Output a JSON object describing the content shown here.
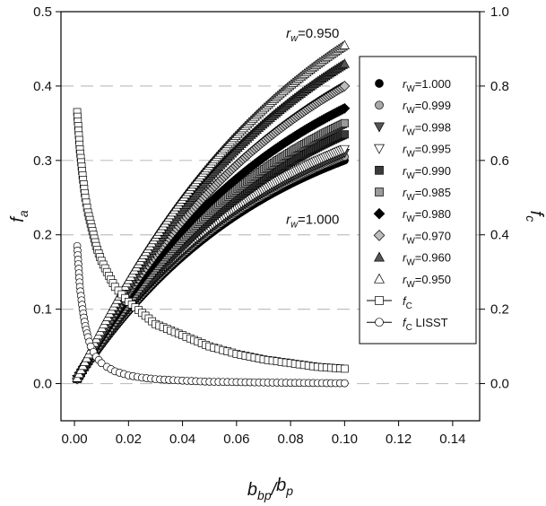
{
  "chart_data": {
    "type": "scatter",
    "title": "",
    "xlabel": "b_bp/b_p",
    "ylabel_left": "f_a",
    "ylabel_right": "f_c",
    "xlim": [
      -0.005,
      0.15
    ],
    "ylim_left": [
      -0.05,
      0.5
    ],
    "ylim_right": [
      -0.1,
      1.0
    ],
    "x_ticks": [
      "0.00",
      "0.02",
      "0.04",
      "0.06",
      "0.08",
      "0.10",
      "0.12",
      "0.14"
    ],
    "y_ticks_left": [
      "0.0",
      "0.1",
      "0.2",
      "0.3",
      "0.4",
      "0.5"
    ],
    "y_ticks_right": [
      "0.0",
      "0.2",
      "0.4",
      "0.6",
      "0.8",
      "1.0"
    ],
    "gridlines": "dashed horizontal at 0.0-0.4 (left axis)",
    "legend_position": "right",
    "annotations": [
      {
        "text": "r_w=0.950",
        "x": 0.098,
        "y": 0.465
      },
      {
        "text": "r_w=1.000",
        "x": 0.098,
        "y": 0.215
      }
    ],
    "series": [
      {
        "name": "r_W=1.000",
        "axis": "left",
        "marker": "circle",
        "fill": "#000000",
        "x_end": 0.1,
        "y_end": 0.3,
        "shape_k": 14
      },
      {
        "name": "r_W=0.999",
        "axis": "left",
        "marker": "circle",
        "fill": "#a8a8a8",
        "x_end": 0.1,
        "y_end": 0.305,
        "shape_k": 14
      },
      {
        "name": "r_W=0.998",
        "axis": "left",
        "marker": "triangle-down",
        "fill": "#555555",
        "x_end": 0.1,
        "y_end": 0.31,
        "shape_k": 14
      },
      {
        "name": "r_W=0.995",
        "axis": "left",
        "marker": "triangle-down",
        "fill": "#ffffff",
        "x_end": 0.1,
        "y_end": 0.315,
        "shape_k": 14
      },
      {
        "name": "r_W=0.990",
        "axis": "left",
        "marker": "square",
        "fill": "#3a3a3a",
        "x_end": 0.1,
        "y_end": 0.335,
        "shape_k": 13
      },
      {
        "name": "r_W=0.985",
        "axis": "left",
        "marker": "square",
        "fill": "#9a9a9a",
        "x_end": 0.1,
        "y_end": 0.35,
        "shape_k": 13
      },
      {
        "name": "r_W=0.980",
        "axis": "left",
        "marker": "diamond",
        "fill": "#000000",
        "x_end": 0.1,
        "y_end": 0.37,
        "shape_k": 13
      },
      {
        "name": "r_W=0.970",
        "axis": "left",
        "marker": "diamond",
        "fill": "#bdbdbd",
        "x_end": 0.1,
        "y_end": 0.4,
        "shape_k": 12
      },
      {
        "name": "r_W=0.960",
        "axis": "left",
        "marker": "triangle-up",
        "fill": "#555555",
        "x_end": 0.1,
        "y_end": 0.43,
        "shape_k": 12
      },
      {
        "name": "r_W=0.950",
        "axis": "left",
        "marker": "triangle-up",
        "fill": "#ffffff",
        "x_end": 0.1,
        "y_end": 0.455,
        "shape_k": 12
      },
      {
        "name": "f_C",
        "axis": "right",
        "marker": "square-open-line",
        "x": [
          0.001,
          0.002,
          0.003,
          0.004,
          0.005,
          0.006,
          0.007,
          0.008,
          0.01,
          0.012,
          0.015,
          0.02,
          0.025,
          0.03,
          0.04,
          0.05,
          0.06,
          0.07,
          0.08,
          0.09,
          0.1
        ],
        "y": [
          0.73,
          0.63,
          0.56,
          0.5,
          0.46,
          0.43,
          0.4,
          0.37,
          0.33,
          0.3,
          0.26,
          0.22,
          0.19,
          0.16,
          0.13,
          0.1,
          0.08,
          0.065,
          0.055,
          0.045,
          0.04
        ]
      },
      {
        "name": "f_C LISST",
        "axis": "right",
        "marker": "circle-open-line",
        "x": [
          0.001,
          0.002,
          0.003,
          0.004,
          0.005,
          0.006,
          0.007,
          0.008,
          0.01,
          0.012,
          0.015,
          0.02,
          0.025,
          0.03,
          0.04,
          0.05,
          0.06,
          0.07,
          0.08,
          0.09,
          0.1
        ],
        "y": [
          0.37,
          0.26,
          0.2,
          0.155,
          0.125,
          0.1,
          0.085,
          0.072,
          0.055,
          0.045,
          0.033,
          0.022,
          0.016,
          0.012,
          0.008,
          0.005,
          0.004,
          0.003,
          0.002,
          0.0015,
          0.001
        ]
      }
    ],
    "legend": [
      {
        "sym": "r",
        "sub": "W",
        "val": "=1.000",
        "marker": "circle",
        "fill": "#000000"
      },
      {
        "sym": "r",
        "sub": "W",
        "val": "=0.999",
        "marker": "circle",
        "fill": "#a8a8a8"
      },
      {
        "sym": "r",
        "sub": "W",
        "val": "=0.998",
        "marker": "triangle-down",
        "fill": "#555555"
      },
      {
        "sym": "r",
        "sub": "W",
        "val": "=0.995",
        "marker": "triangle-down",
        "fill": "#ffffff"
      },
      {
        "sym": "r",
        "sub": "W",
        "val": "=0.990",
        "marker": "square",
        "fill": "#3a3a3a"
      },
      {
        "sym": "r",
        "sub": "W",
        "val": "=0.985",
        "marker": "square",
        "fill": "#9a9a9a"
      },
      {
        "sym": "r",
        "sub": "W",
        "val": "=0.980",
        "marker": "diamond",
        "fill": "#000000"
      },
      {
        "sym": "r",
        "sub": "W",
        "val": "=0.970",
        "marker": "diamond",
        "fill": "#bdbdbd"
      },
      {
        "sym": "r",
        "sub": "W",
        "val": "=0.960",
        "marker": "triangle-up",
        "fill": "#555555"
      },
      {
        "sym": "r",
        "sub": "W",
        "val": "=0.950",
        "marker": "triangle-up",
        "fill": "#ffffff"
      },
      {
        "sym": "f",
        "sub": "C",
        "val": "",
        "marker": "square-open-line",
        "fill": "#ffffff"
      },
      {
        "sym": "f",
        "sub": "C",
        "val": " LISST",
        "marker": "circle-open-line",
        "fill": "#ffffff"
      }
    ]
  }
}
